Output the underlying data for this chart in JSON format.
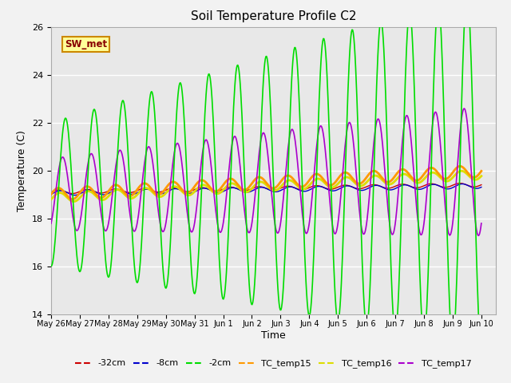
{
  "title": "Soil Temperature Profile C2",
  "xlabel": "Time",
  "ylabel": "Temperature (C)",
  "ylim": [
    14,
    26
  ],
  "yticks": [
    14,
    16,
    18,
    20,
    22,
    24,
    26
  ],
  "x_tick_labels": [
    "May 26",
    "May 27",
    "May 28",
    "May 29",
    "May 30",
    "May 31",
    "Jun 1",
    "Jun 2",
    "Jun 3",
    "Jun 4",
    "Jun 5",
    "Jun 6",
    "Jun 7",
    "Jun 8",
    "Jun 9",
    "Jun 10"
  ],
  "annotation_text": "SW_met",
  "annotation_bg": "#ffff99",
  "annotation_border": "#cc8800",
  "annotation_text_color": "#880000",
  "bg_color": "#e8e8e8",
  "fig_bg_color": "#f2f2f2",
  "line_colors": {
    "m32cm": "#cc0000",
    "m8cm": "#0000cc",
    "m2cm": "#00dd00",
    "TC_temp15": "#ff9900",
    "TC_temp16": "#dddd00",
    "TC_temp17": "#aa00cc"
  },
  "legend_labels": [
    "-32cm",
    "-8cm",
    "-2cm",
    "TC_temp15",
    "TC_temp16",
    "TC_temp17"
  ]
}
